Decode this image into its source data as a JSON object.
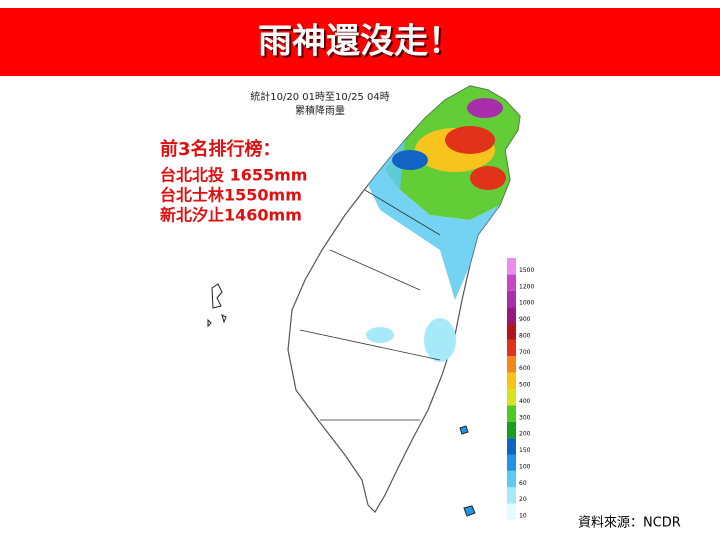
{
  "header": {
    "title": "雨神還沒走！"
  },
  "map": {
    "subtitle": "統計10/20 01時至10/25 04時",
    "caption": "累積降雨量"
  },
  "ranking": {
    "title": "前3名排行榜：",
    "entries": [
      "台北北投 1655mm",
      "台北士林1550mm",
      "新北汐止1460mm"
    ]
  },
  "legend": {
    "levels": [
      {
        "value": 10,
        "color": "#e6fbff"
      },
      {
        "value": 20,
        "color": "#a6e9f9"
      },
      {
        "value": 60,
        "color": "#5ccbf0"
      },
      {
        "value": 100,
        "color": "#2196e8"
      },
      {
        "value": 150,
        "color": "#1263c6"
      },
      {
        "value": 200,
        "color": "#1a9e1c"
      },
      {
        "value": 300,
        "color": "#52c822"
      },
      {
        "value": 400,
        "color": "#d6e320"
      },
      {
        "value": 500,
        "color": "#f7c41d"
      },
      {
        "value": 600,
        "color": "#f08a17"
      },
      {
        "value": 700,
        "color": "#e0331a"
      },
      {
        "value": 800,
        "color": "#b5141c"
      },
      {
        "value": 900,
        "color": "#9b1580"
      },
      {
        "value": 1000,
        "color": "#a92ea9"
      },
      {
        "value": 1200,
        "color": "#c845c8"
      },
      {
        "value": 1500,
        "color": "#ee8cee"
      }
    ]
  },
  "source": "資料來源：NCDR"
}
